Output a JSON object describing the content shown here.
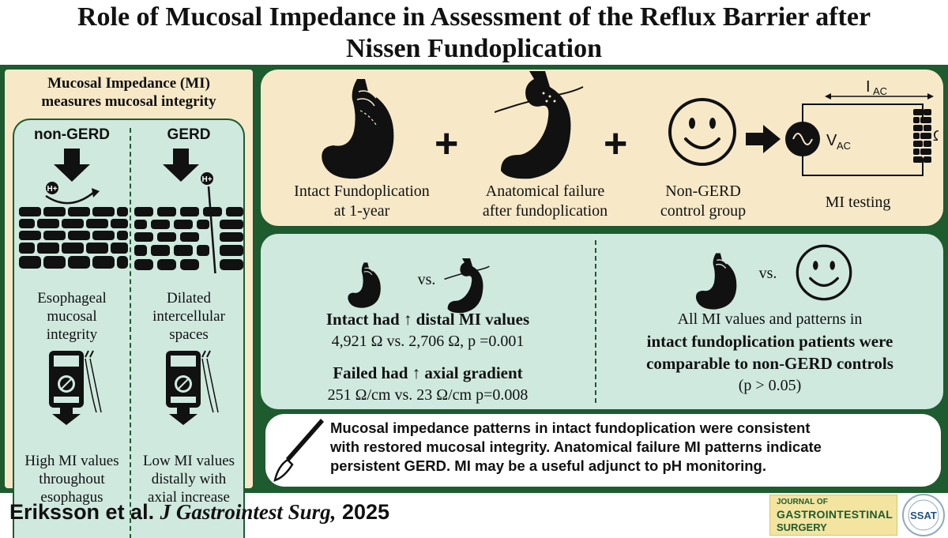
{
  "title": {
    "line1": "Role of Mucosal Impedance in Assessment of the Reflux Barrier after",
    "line2": "Nissen Fundoplication"
  },
  "left_panel": {
    "heading_line1": "Mucosal Impedance (MI)",
    "heading_line2": "measures mucosal integrity",
    "non_gerd": {
      "label": "non-GERD",
      "ion": "H+",
      "text1": [
        "Esophageal",
        "mucosal",
        "integrity"
      ],
      "text2": [
        "High MI values",
        "throughout",
        "esophagus"
      ]
    },
    "gerd": {
      "label": "GERD",
      "ion": "H+",
      "text1": [
        "Dilated",
        "intercellular",
        "spaces"
      ],
      "text2": [
        "Low MI values",
        "distally with",
        "axial increase"
      ]
    }
  },
  "top_panel": {
    "items": [
      {
        "line1": "Intact Fundoplication",
        "line2": "at 1-year"
      },
      {
        "line1": "Anatomical failure",
        "line2": "after fundoplication"
      },
      {
        "line1": "Non-GERD",
        "line2": "control group"
      },
      {
        "line1": "MI testing",
        "line2": ""
      }
    ],
    "plus": "+",
    "circuit": {
      "current": "I",
      "current_sub": "AC",
      "voltage": "V",
      "voltage_sub": "AC",
      "resistance": "Ω"
    }
  },
  "mid_panel": {
    "left": {
      "vs": "vs.",
      "finding1": "Intact had ↑ distal MI values",
      "detail1": "4,921 Ω vs. 2,706 Ω, p =0.001",
      "finding2": "Failed had ↑ axial gradient",
      "detail2": "251 Ω/cm vs. 23 Ω/cm p=0.008"
    },
    "right": {
      "vs": "vs.",
      "line1": "All MI values and patterns in",
      "line2": "intact fundoplication patients were",
      "line3": "comparable to non-GERD controls",
      "line4": "(p > 0.05)"
    }
  },
  "conclusion": {
    "line1": "Mucosal impedance patterns in intact fundoplication were consistent",
    "line2": "with restored mucosal integrity. Anatomical failure MI patterns indicate",
    "line3": "persistent GERD. MI may be a useful adjunct to pH monitoring."
  },
  "citation": {
    "authors": "Eriksson et al.",
    "journal": "J Gastrointest Surg,",
    "year": "2025"
  },
  "logos": {
    "journal_l1": "JOURNAL OF",
    "journal_l2": "GASTROINTESTINAL",
    "journal_l3": "SURGERY",
    "ssat": "SSAT"
  },
  "colors": {
    "frame": "#1e5b2f",
    "beige": "#f7e9c8",
    "mint": "#cfe9df",
    "ink": "#111111"
  }
}
